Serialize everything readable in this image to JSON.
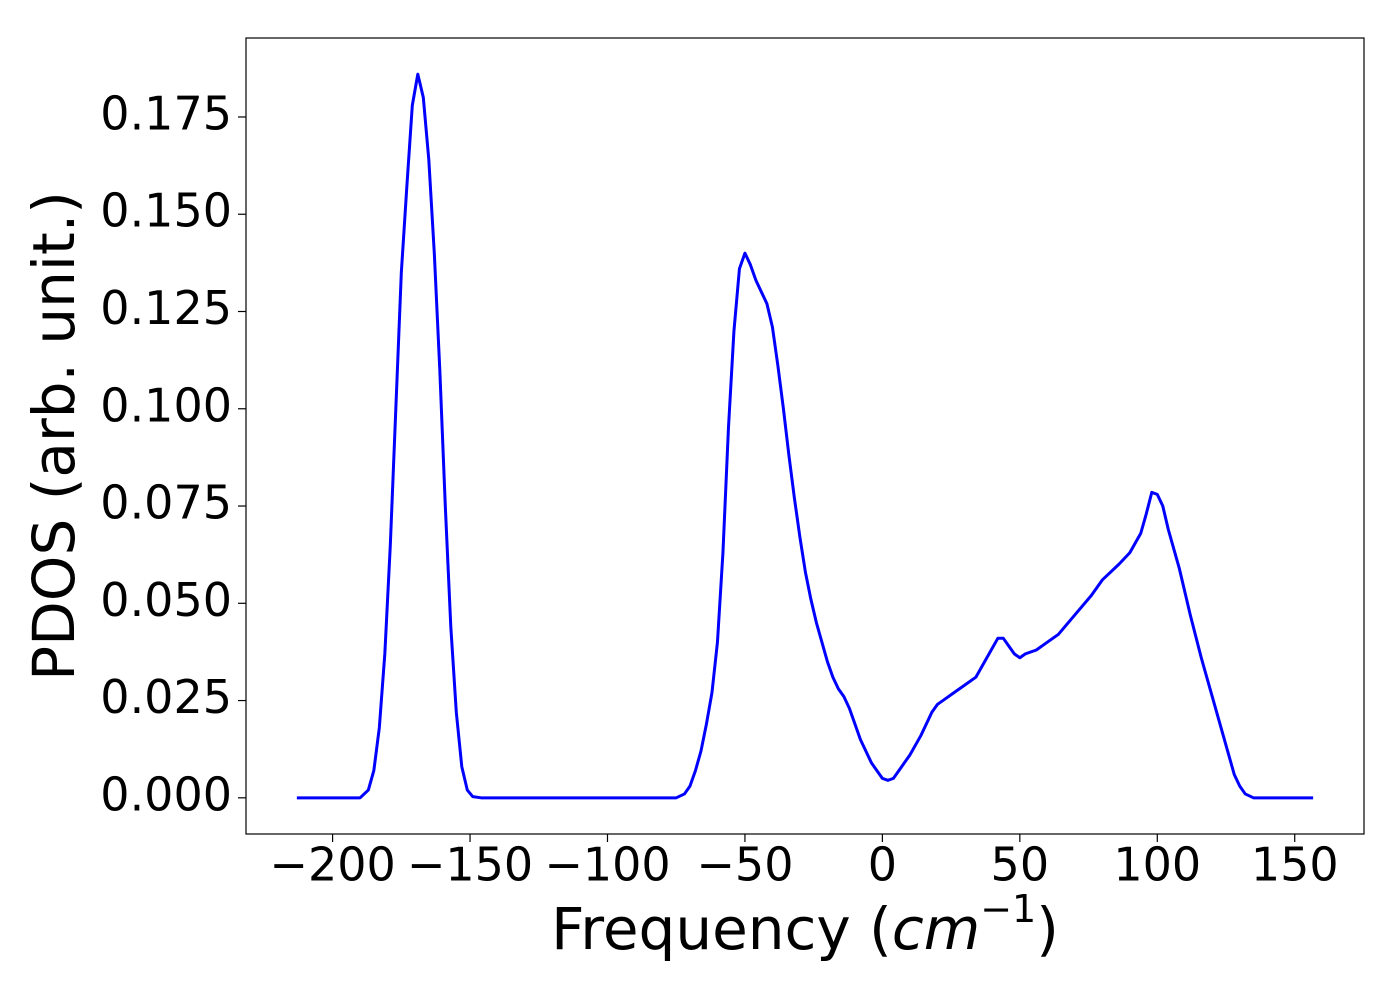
{
  "chart_data": {
    "type": "line",
    "x_label": [
      "Frequency (",
      "cm",
      "−1",
      ")"
    ],
    "y_label": "PDOS (arb. unit.)",
    "color": "#0000ff",
    "xlim": [
      -231.5,
      175.2
    ],
    "ylim": [
      -0.0093,
      0.1953
    ],
    "xticks": [
      {
        "value": -200,
        "label": "−200"
      },
      {
        "value": -150,
        "label": "−150"
      },
      {
        "value": -100,
        "label": "−100"
      },
      {
        "value": -50,
        "label": "−50"
      },
      0,
      50,
      100,
      150
    ],
    "yticks": [
      {
        "value": 0,
        "label": "0.000"
      },
      {
        "value": 0.025,
        "label": "0.025"
      },
      {
        "value": 0.05,
        "label": "0.050"
      },
      {
        "value": 0.075,
        "label": "0.075"
      },
      {
        "value": 0.1,
        "label": "0.100"
      },
      {
        "value": 0.125,
        "label": "0.125"
      },
      {
        "value": 0.15,
        "label": "0.150"
      },
      {
        "value": 0.175,
        "label": "0.175"
      }
    ],
    "grid": false,
    "x": [
      -213,
      -190,
      -187,
      -185,
      -183,
      -181,
      -179,
      -177,
      -175,
      -173,
      -171,
      -169,
      -167,
      -165,
      -163,
      -161,
      -159,
      -157,
      -155,
      -153,
      -151,
      -149,
      -146,
      -75,
      -72,
      -70,
      -68,
      -66,
      -64,
      -62,
      -60,
      -58,
      -56,
      -54,
      -52,
      -50,
      -48,
      -46,
      -44,
      -42,
      -40,
      -38,
      -36,
      -34,
      -32,
      -30,
      -28,
      -26,
      -24,
      -22,
      -20,
      -18,
      -16,
      -14,
      -12,
      -10,
      -8,
      -6,
      -4,
      -2,
      0,
      2,
      4,
      6,
      10,
      14,
      18,
      20,
      22,
      26,
      30,
      34,
      38,
      42,
      44,
      46,
      48,
      50,
      52,
      56,
      60,
      64,
      70,
      76,
      80,
      86,
      90,
      94,
      96,
      98,
      100,
      102,
      104,
      108,
      112,
      116,
      120,
      124,
      128,
      130,
      132,
      135,
      156.7
    ],
    "values": [
      0,
      0,
      0.002,
      0.007,
      0.018,
      0.037,
      0.065,
      0.1,
      0.135,
      0.157,
      0.178,
      0.186,
      0.18,
      0.164,
      0.14,
      0.11,
      0.075,
      0.044,
      0.022,
      0.008,
      0.002,
      0.0003,
      0,
      0,
      0.001,
      0.003,
      0.007,
      0.012,
      0.019,
      0.027,
      0.04,
      0.063,
      0.095,
      0.12,
      0.136,
      0.14,
      0.137,
      0.133,
      0.13,
      0.127,
      0.121,
      0.111,
      0.1,
      0.088,
      0.077,
      0.067,
      0.058,
      0.051,
      0.045,
      0.04,
      0.035,
      0.031,
      0.028,
      0.026,
      0.023,
      0.019,
      0.015,
      0.012,
      0.009,
      0.007,
      0.005,
      0.0045,
      0.005,
      0.007,
      0.011,
      0.016,
      0.022,
      0.024,
      0.025,
      0.027,
      0.029,
      0.031,
      0.036,
      0.041,
      0.041,
      0.039,
      0.037,
      0.036,
      0.037,
      0.038,
      0.04,
      0.042,
      0.047,
      0.052,
      0.056,
      0.06,
      0.063,
      0.068,
      0.073,
      0.0785,
      0.078,
      0.075,
      0.069,
      0.059,
      0.047,
      0.036,
      0.026,
      0.016,
      0.006,
      0.003,
      0.001,
      0,
      0
    ]
  }
}
